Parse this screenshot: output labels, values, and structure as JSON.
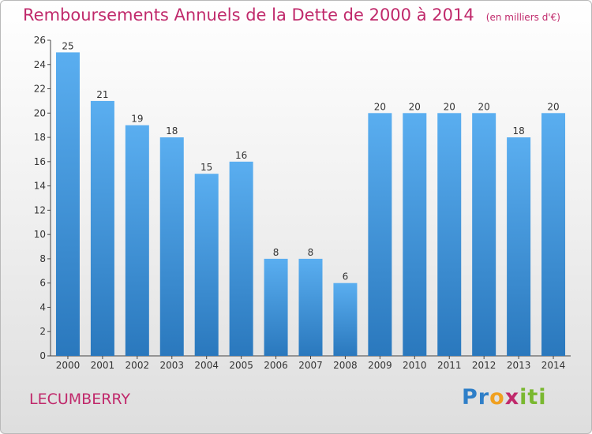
{
  "header": {
    "title": "Remboursements Annuels de la Dette de 2000 à 2014",
    "unit": "(en milliers d'€)"
  },
  "commune": "LECUMBERRY",
  "logo": {
    "text": "Proxiti",
    "letters": [
      {
        "char": "P",
        "color": "#2f7fc8"
      },
      {
        "char": "r",
        "color": "#2f7fc8"
      },
      {
        "char": "o",
        "color": "#f0a020"
      },
      {
        "char": "x",
        "color": "#c0296b"
      },
      {
        "char": "i",
        "color": "#7ab830"
      },
      {
        "char": "t",
        "color": "#7ab830"
      },
      {
        "char": "i",
        "color": "#7ab830"
      }
    ]
  },
  "colors": {
    "bar_top": "#5aaef0",
    "bar_bottom": "#2a78bd",
    "title": "#c0296b",
    "axis": "#444444"
  },
  "chart_data": {
    "type": "bar",
    "title": "Remboursements Annuels de la Dette de 2000 à 2014",
    "subtitle": "(en milliers d'€)",
    "categories": [
      "2000",
      "2001",
      "2002",
      "2003",
      "2004",
      "2005",
      "2006",
      "2007",
      "2008",
      "2009",
      "2010",
      "2011",
      "2012",
      "2013",
      "2014"
    ],
    "values": [
      25,
      21,
      19,
      18,
      15,
      16,
      8,
      8,
      6,
      20,
      20,
      20,
      20,
      18,
      20
    ],
    "ylim": [
      0,
      26
    ],
    "yticks": [
      0,
      2,
      4,
      6,
      8,
      10,
      12,
      14,
      16,
      18,
      20,
      22,
      24,
      26
    ],
    "data_labels": true,
    "legend": "none",
    "grid": false
  }
}
